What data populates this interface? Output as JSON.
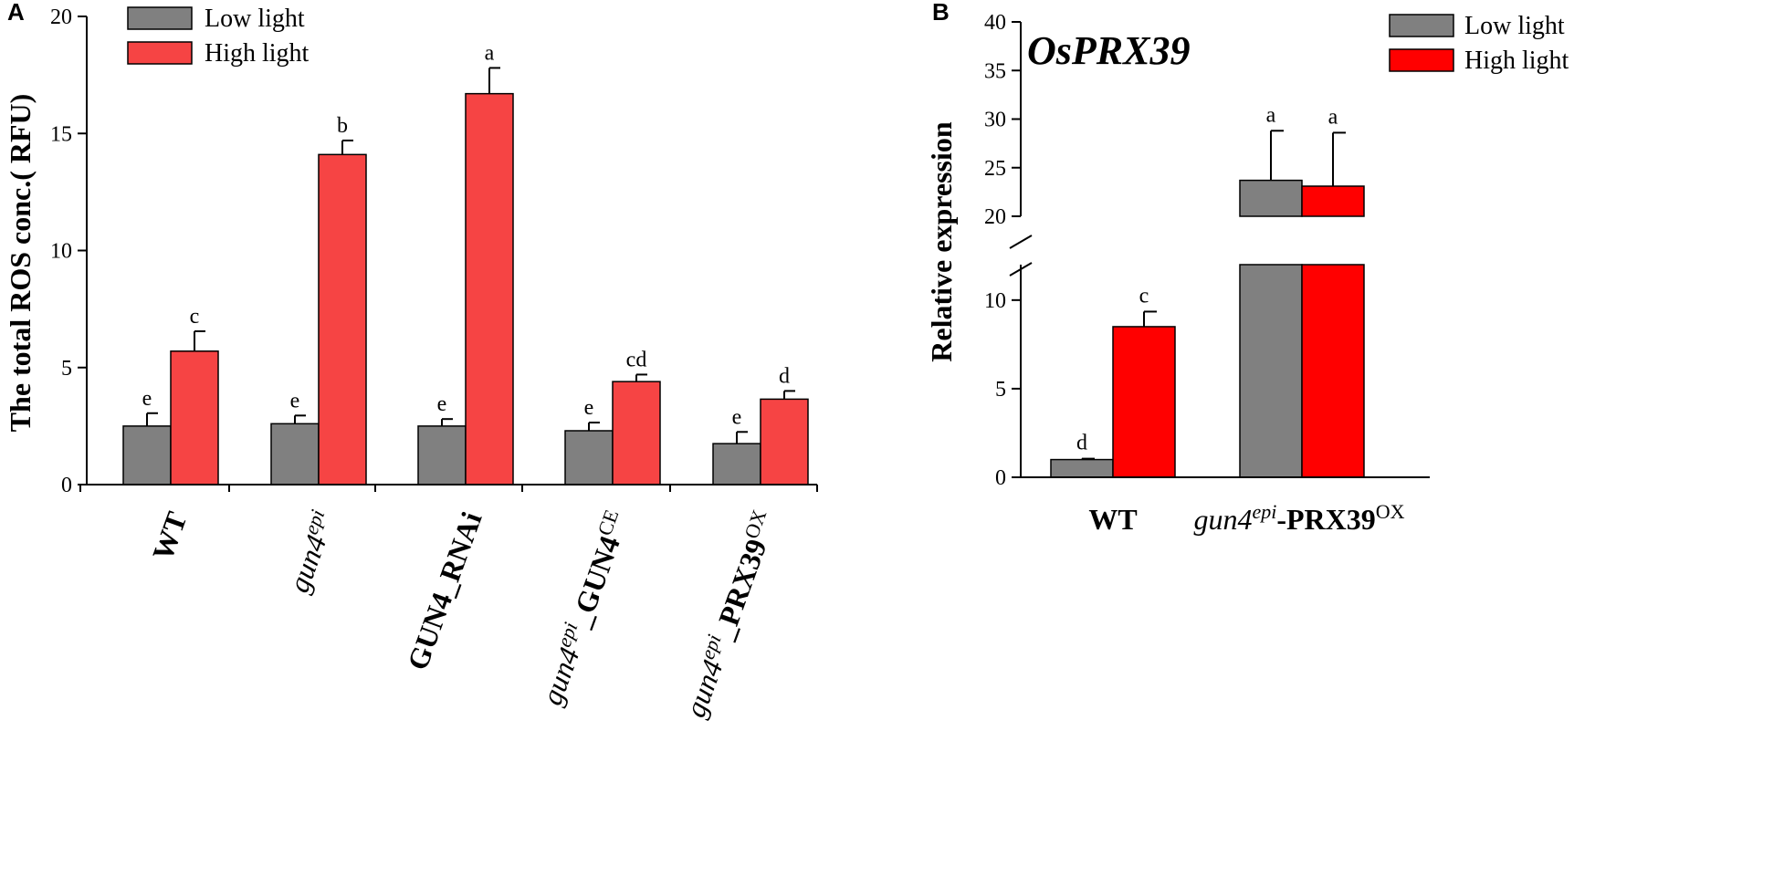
{
  "panels": {
    "a": "A",
    "b": "B"
  },
  "colors": {
    "low": "#808080",
    "high_a": "#f64444",
    "high_b": "#ff0000",
    "axis": "#000000"
  },
  "chart_data": [
    {
      "type": "bar",
      "panel": "A",
      "title": "",
      "ylabel": "The total ROS conc.( RFU)",
      "xlabel": "",
      "ylim": [
        0,
        20
      ],
      "yticks": [
        "0",
        "5",
        "10",
        "15",
        "20"
      ],
      "categories": [
        {
          "parts": [
            "WT"
          ],
          "styles": [
            "bold"
          ]
        },
        {
          "parts": [
            "gun4",
            "epi"
          ],
          "styles": [
            "italic",
            "sup-italic"
          ]
        },
        {
          "parts": [
            "GUN4_RNAi"
          ],
          "styles": [
            "bold"
          ]
        },
        {
          "parts": [
            "gun4",
            "epi",
            "_GUN4",
            "CE"
          ],
          "styles": [
            "italic",
            "sup-italic",
            "bold",
            "sup"
          ]
        },
        {
          "parts": [
            "gun4",
            "epi",
            "_PRX39",
            "OX"
          ],
          "styles": [
            "italic",
            "sup-italic",
            "bold",
            "sup"
          ]
        }
      ],
      "legend": [
        "Low light",
        "High light"
      ],
      "series": [
        {
          "name": "Low light",
          "values": [
            2.5,
            2.6,
            2.5,
            2.3,
            1.75
          ],
          "errors": [
            0.55,
            0.35,
            0.3,
            0.35,
            0.5
          ],
          "letters": [
            "e",
            "e",
            "e",
            "e",
            "e"
          ]
        },
        {
          "name": "High light",
          "values": [
            5.7,
            14.1,
            16.7,
            4.4,
            3.65
          ],
          "errors": [
            0.85,
            0.6,
            1.1,
            0.3,
            0.35
          ],
          "letters": [
            "c",
            "b",
            "a",
            "cd",
            "d"
          ]
        }
      ]
    },
    {
      "type": "bar",
      "panel": "B",
      "title": "OsPRX39",
      "ylabel": "Relative expression",
      "xlabel": "",
      "ylim": [
        0,
        40
      ],
      "axis_break": [
        12,
        19
      ],
      "yticks_lower": [
        "0",
        "5",
        "10"
      ],
      "yticks_upper": [
        "20",
        "25",
        "30",
        "35",
        "40"
      ],
      "categories": [
        {
          "parts": [
            "WT"
          ],
          "styles": [
            "bold"
          ]
        },
        {
          "parts": [
            "gun4",
            "epi",
            "-PRX39",
            "OX"
          ],
          "styles": [
            "italic",
            "sup-italic",
            "bold",
            "sup"
          ]
        }
      ],
      "legend": [
        "Low light",
        "High light"
      ],
      "series": [
        {
          "name": "Low light",
          "values": [
            1.0,
            23.7
          ],
          "errors": [
            0.05,
            5.1
          ],
          "letters": [
            "d",
            "a"
          ]
        },
        {
          "name": "High light",
          "values": [
            8.5,
            23.1
          ],
          "errors": [
            0.85,
            5.5
          ],
          "letters": [
            "c",
            "a"
          ]
        }
      ]
    }
  ]
}
